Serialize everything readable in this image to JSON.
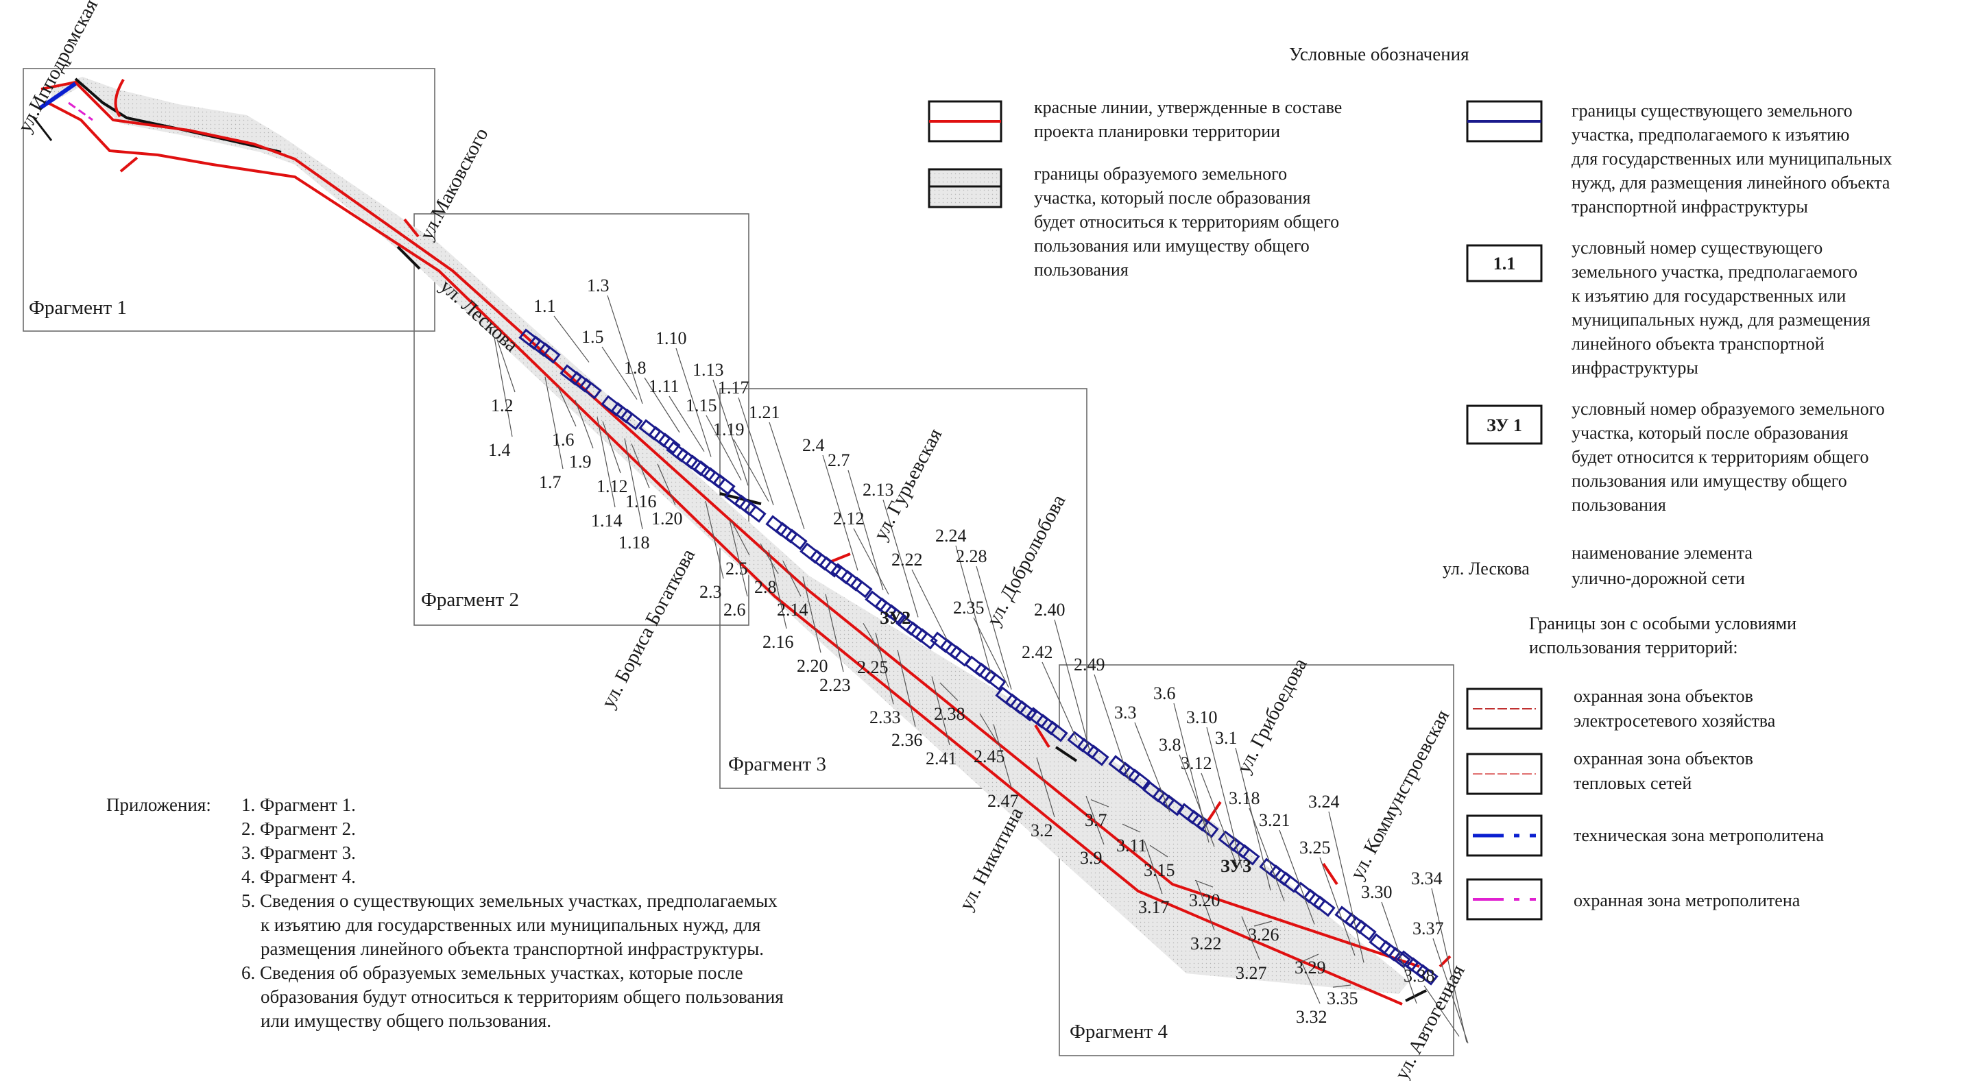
{
  "legend": {
    "title": "Условные обозначения",
    "items": [
      {
        "id": "red-lines",
        "lines": [
          "красные линии, утвержденные в составе",
          "проекта планировки территории"
        ]
      },
      {
        "id": "new-parcel",
        "lines": [
          "границы образуемого земельного",
          "участка, который после образования",
          "будет относиться к территориям общего",
          "пользования или имуществу общего",
          "пользования"
        ]
      },
      {
        "id": "existing-parcel",
        "lines": [
          "границы существующего земельного",
          "участка, предполагаемого к изъятию",
          "для государственных или муниципальных",
          "нужд, для размещения линейного объекта",
          "транспортной инфраструктуры"
        ]
      },
      {
        "id": "existing-number",
        "badge": "1.1",
        "lines": [
          "условный номер существующего",
          "земельного участка, предполагаемого",
          "к изъятию для государственных или",
          "муниципальных нужд, для размещения",
          "линейного объекта транспортной",
          "инфраструктуры"
        ]
      },
      {
        "id": "new-number",
        "badge": "ЗУ 1",
        "lines": [
          "условный номер образуемого земельного",
          "участка, который после образования",
          "будет относится к территориям общего",
          "пользования или имуществу общего",
          "пользования"
        ]
      },
      {
        "id": "street-name",
        "sample": "ул. Лескова",
        "lines": [
          "наименование элемента",
          "улично-дорожной сети"
        ]
      }
    ],
    "zones_title": [
      "Границы зон с особыми условиями",
      "использования территорий:"
    ],
    "zones": [
      {
        "id": "power-zone",
        "lines": [
          "охранная зона объектов",
          "электросетевого хозяйства"
        ]
      },
      {
        "id": "heat-zone",
        "lines": [
          "охранная зона объектов",
          "тепловых сетей"
        ]
      },
      {
        "id": "metro-tech",
        "lines": [
          "техническая зона метрополитена"
        ]
      },
      {
        "id": "metro-guard",
        "lines": [
          "охранная зона метрополитена"
        ]
      }
    ]
  },
  "appendix": {
    "label": "Приложения:",
    "items": [
      [
        "1. Фрагмент 1."
      ],
      [
        "2. Фрагмент 2."
      ],
      [
        "3. Фрагмент 3."
      ],
      [
        "4. Фрагмент 4."
      ],
      [
        "5. Сведения о существующих земельных участках, предполагаемых",
        "к изъятию для государственных или муниципальных нужд, для",
        "размещения линейного объекта транспортной инфраструктуры."
      ],
      [
        "6. Сведения об образуемых земельных участках, которые после",
        "образования будут относиться к территориям общего пользования",
        "или имуществу общего пользования."
      ]
    ]
  },
  "fragments": [
    "Фрагмент 1",
    "Фрагмент 2",
    "Фрагмент 3",
    "Фрагмент 4"
  ],
  "streets": [
    "ул.Ипподромская",
    "ул.Маковского",
    "ул. Лескова",
    "ул. Бориса Богаткова",
    "ул. Гурьевская",
    "ул. Добролюбова",
    "ул. Никитина",
    "ул. Грибоедова",
    "ул. Коммунстроевская",
    "ул. Автогенная"
  ],
  "new_parcels": [
    "ЗУ2",
    "ЗУ3"
  ],
  "parcel_labels": [
    "1.1",
    "1.2",
    "1.3",
    "1.4",
    "1.5",
    "1.6",
    "1.7",
    "1.8",
    "1.9",
    "1.10",
    "1.11",
    "1.12",
    "1.13",
    "1.14",
    "1.15",
    "1.16",
    "1.17",
    "1.18",
    "1.19",
    "1.20",
    "1.21",
    "2.3",
    "2.4",
    "2.5",
    "2.6",
    "2.7",
    "2.8",
    "2.12",
    "2.13",
    "2.14",
    "2.16",
    "2.20",
    "2.22",
    "2.23",
    "2.24",
    "2.25",
    "2.28",
    "2.33",
    "2.35",
    "2.36",
    "2.38",
    "2.40",
    "2.41",
    "2.42",
    "2.45",
    "2.47",
    "2.49",
    "3.1",
    "3.2",
    "3.3",
    "3.6",
    "3.7",
    "3.8",
    "3.9",
    "3.10",
    "3.11",
    "3.12",
    "3.15",
    "3.17",
    "3.18",
    "3.20",
    "3.21",
    "3.22",
    "3.24",
    "3.25",
    "3.26",
    "3.27",
    "3.29",
    "3.30",
    "3.32",
    "3.34",
    "3.35",
    "3.37",
    "3.38"
  ],
  "colors": {
    "red_line": "#e01010",
    "parcel_blue": "#1a1a8c",
    "metro_tech": "#0a1fd0",
    "metro_guard": "#e020d0",
    "fill_gray": "#e6e6e6",
    "frame": "#555555"
  }
}
